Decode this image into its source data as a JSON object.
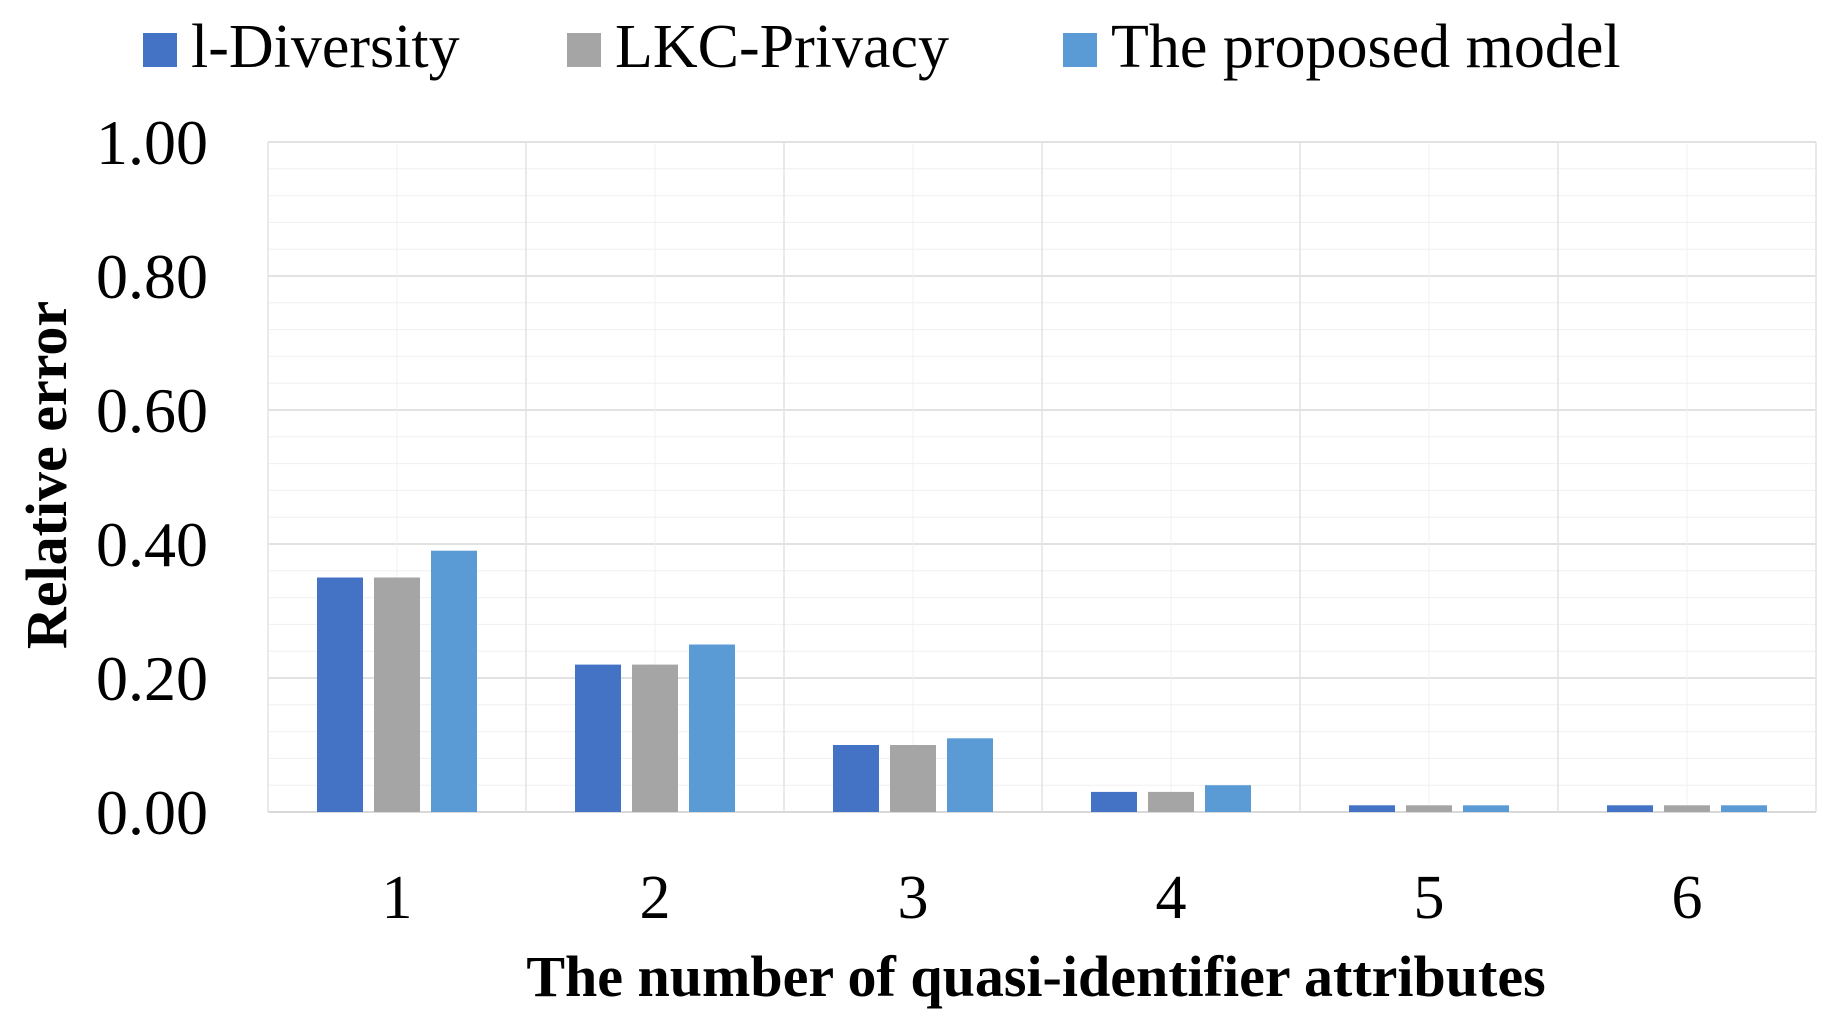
{
  "chart_data": {
    "type": "bar",
    "title": "",
    "xlabel": "The number of quasi-identifier attributes",
    "ylabel": "Relative error",
    "categories": [
      "1",
      "2",
      "3",
      "4",
      "5",
      "6"
    ],
    "ylim": [
      0,
      1.0
    ],
    "yticks": [
      "0.00",
      "0.20",
      "0.40",
      "0.60",
      "0.80",
      "1.00"
    ],
    "grid": true,
    "legend_position": "top",
    "series": [
      {
        "name": "l-Diversity",
        "color": "#4472C4",
        "values": [
          0.35,
          0.22,
          0.1,
          0.03,
          0.01,
          0.01
        ]
      },
      {
        "name": "LKC-Privacy",
        "color": "#A5A5A5",
        "values": [
          0.35,
          0.22,
          0.1,
          0.03,
          0.01,
          0.01
        ]
      },
      {
        "name": "The proposed model",
        "color": "#5B9BD5",
        "values": [
          0.39,
          0.25,
          0.11,
          0.04,
          0.01,
          0.01
        ]
      }
    ]
  }
}
